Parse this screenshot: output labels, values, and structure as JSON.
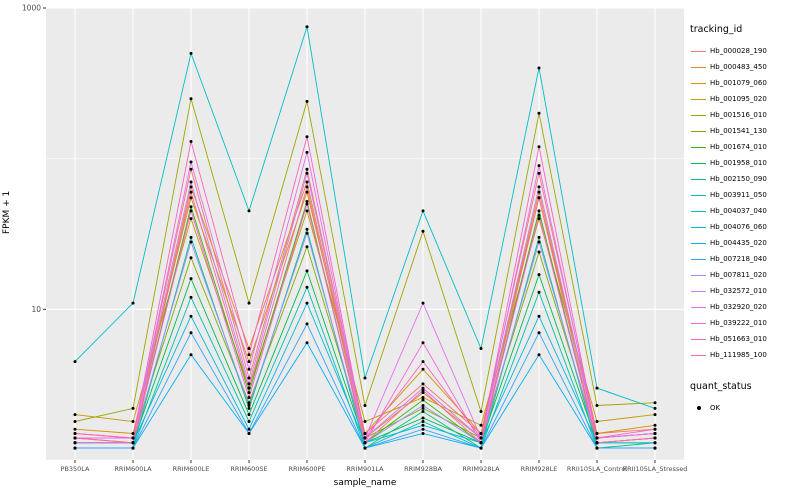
{
  "chart_data": {
    "type": "line",
    "title": "",
    "xlabel": "sample_name",
    "ylabel": "FPKM + 1",
    "y_scale": "log10",
    "ylim": [
      1,
      1000
    ],
    "y_major_ticks": [
      {
        "label": "1000",
        "value": 1000
      },
      {
        "label": "10",
        "value": 10
      }
    ],
    "y_minor_gridline_values": [
      1,
      100
    ],
    "grid": true,
    "legend_position": "right",
    "point_color": "#000000",
    "categories": [
      "PB350LA",
      "RRIM600LA",
      "RRIM600LE",
      "RRIM600SE",
      "RRIM600PE",
      "RRIM901LA",
      "RRIM928BA",
      "RRIM928LA",
      "RRIM928LE",
      "RRII105LA_Control",
      "RRII105LA_Stressed"
    ],
    "series": [
      {
        "name": "Hb_000028_190",
        "color": "#F8766D",
        "values": [
          1.5,
          1.4,
          85,
          3.5,
          85,
          1.5,
          3.2,
          1.5,
          80,
          1.5,
          1.6
        ]
      },
      {
        "name": "Hb_000483_450",
        "color": "#EA8331",
        "values": [
          1.4,
          1.3,
          65,
          5.5,
          70,
          1.4,
          2.8,
          1.4,
          60,
          1.4,
          1.5
        ]
      },
      {
        "name": "Hb_001079_060",
        "color": "#D89000",
        "values": [
          1.6,
          1.5,
          55,
          4.5,
          60,
          1.5,
          4.0,
          1.5,
          55,
          1.5,
          1.7
        ]
      },
      {
        "name": "Hb_001095_020",
        "color": "#C09B00",
        "values": [
          2.0,
          1.8,
          40,
          3.0,
          45,
          1.8,
          2.6,
          1.7,
          40,
          1.8,
          2.0
        ]
      },
      {
        "name": "Hb_001516_010",
        "color": "#A3A500",
        "values": [
          1.8,
          2.2,
          250,
          11,
          240,
          2.3,
          33,
          2.1,
          200,
          2.3,
          2.4
        ]
      },
      {
        "name": "Hb_001541_130",
        "color": "#7CAE00",
        "values": [
          1.4,
          1.4,
          22,
          2.4,
          26,
          1.4,
          2.2,
          1.4,
          24,
          1.4,
          1.5
        ]
      },
      {
        "name": "Hb_001674_010",
        "color": "#39B600",
        "values": [
          1.3,
          1.3,
          48,
          2.8,
          52,
          1.3,
          2.5,
          1.3,
          45,
          1.3,
          1.4
        ]
      },
      {
        "name": "Hb_001958_010",
        "color": "#00BB4E",
        "values": [
          1.3,
          1.3,
          16,
          2.0,
          18,
          1.3,
          1.9,
          1.3,
          17,
          1.3,
          1.3
        ]
      },
      {
        "name": "Hb_002150_090",
        "color": "#00C087",
        "values": [
          1.2,
          1.2,
          30,
          2.2,
          34,
          1.2,
          2.1,
          1.2,
          30,
          1.2,
          1.3
        ]
      },
      {
        "name": "Hb_003911_050",
        "color": "#00C0B2",
        "values": [
          1.2,
          1.2,
          12,
          1.8,
          14,
          1.2,
          1.8,
          1.2,
          13,
          1.2,
          1.2
        ]
      },
      {
        "name": "Hb_004037_040",
        "color": "#00BFC4",
        "values": [
          4.5,
          11,
          500,
          45,
          750,
          3.5,
          45,
          5.5,
          400,
          3.0,
          2.2
        ]
      },
      {
        "name": "Hb_004076_060",
        "color": "#00BAE0",
        "values": [
          1.3,
          1.3,
          9,
          1.6,
          11,
          1.3,
          1.7,
          1.3,
          9,
          1.3,
          1.3
        ]
      },
      {
        "name": "Hb_004435_020",
        "color": "#00B0F6",
        "values": [
          1.2,
          1.2,
          5,
          1.5,
          6,
          1.2,
          1.5,
          1.2,
          5,
          1.2,
          1.2
        ]
      },
      {
        "name": "Hb_007218_040",
        "color": "#35A2FF",
        "values": [
          1.2,
          1.2,
          7,
          1.5,
          8,
          1.2,
          1.6,
          1.2,
          7,
          1.2,
          1.2
        ]
      },
      {
        "name": "Hb_007811_020",
        "color": "#9590FF",
        "values": [
          1.3,
          1.3,
          28,
          2.3,
          32,
          1.3,
          2.3,
          1.3,
          28,
          1.3,
          1.4
        ]
      },
      {
        "name": "Hb_032572_010",
        "color": "#C77CFF",
        "values": [
          1.4,
          1.4,
          70,
          3.2,
          80,
          1.4,
          3.0,
          1.4,
          65,
          1.4,
          1.5
        ]
      },
      {
        "name": "Hb_032920_020",
        "color": "#E76BF3",
        "values": [
          1.4,
          1.4,
          95,
          4.0,
          110,
          1.4,
          11,
          1.4,
          90,
          1.4,
          1.5
        ]
      },
      {
        "name": "Hb_039222_010",
        "color": "#FA62DB",
        "values": [
          1.3,
          1.3,
          45,
          2.6,
          50,
          1.3,
          6,
          1.3,
          42,
          1.3,
          1.4
        ]
      },
      {
        "name": "Hb_051663_010",
        "color": "#FF62BC",
        "values": [
          1.5,
          1.4,
          130,
          5,
          140,
          1.4,
          4.5,
          1.4,
          120,
          1.4,
          1.6
        ]
      },
      {
        "name": "Hb_111985_100",
        "color": "#FF6A98",
        "values": [
          1.4,
          1.3,
          60,
          3.0,
          65,
          1.3,
          2.9,
          1.3,
          55,
          1.3,
          1.4
        ]
      }
    ]
  },
  "legend": {
    "tracking_title": "tracking_id",
    "status_title": "quant_status",
    "status_items": [
      {
        "label": "OK",
        "color": "#000000"
      }
    ]
  },
  "style": {
    "plot_bg": "#EBEBEB",
    "grid_color": "#FFFFFF",
    "tick_text_color": "#4D4D4D",
    "axis_title_color": "#000000",
    "point_color": "#000000"
  }
}
